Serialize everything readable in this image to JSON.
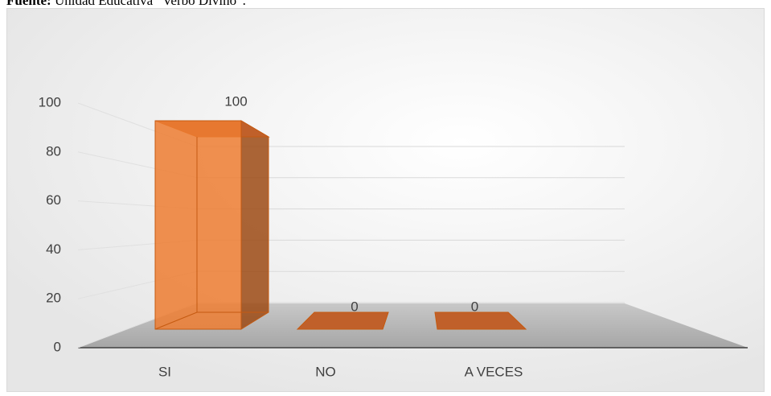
{
  "source": {
    "label": "Fuente:",
    "text": "Unidad Educativa “Verbo Divino”."
  },
  "chart_data": {
    "type": "bar3d",
    "categories": [
      "SI",
      "NO",
      "A VECES"
    ],
    "values": [
      100,
      0,
      0
    ],
    "color": "#ed7d31",
    "ylim": [
      0,
      100
    ],
    "yticks": [
      0,
      20,
      40,
      60,
      80,
      100
    ],
    "grid": true
  }
}
